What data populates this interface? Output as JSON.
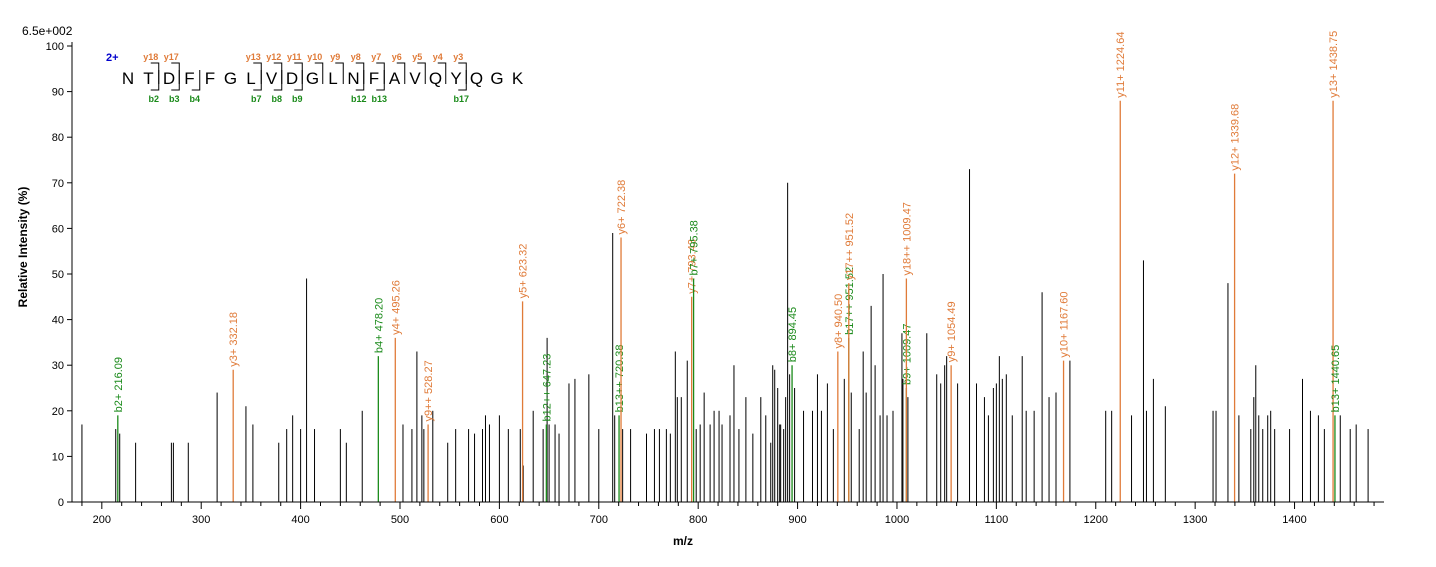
{
  "chart_data": {
    "type": "bar",
    "scale_label": "6.5e+002",
    "xlabel": "m/z",
    "ylabel": "Relative   Intensity (%)",
    "xlim": [
      170,
      1490
    ],
    "ylim": [
      0,
      100
    ],
    "x_ticks": [
      200,
      300,
      400,
      500,
      600,
      700,
      800,
      900,
      1000,
      1100,
      1200,
      1300,
      1400
    ],
    "y_ticks": [
      0,
      10,
      20,
      30,
      40,
      50,
      60,
      70,
      80,
      90,
      100
    ],
    "colors": {
      "y_ion": "#e07b39",
      "b_ion": "#1a8a1a",
      "peak": "#000000",
      "charge": "#0000cc"
    },
    "peptide": {
      "charge": "2+",
      "sequence": [
        "N",
        "T",
        "D",
        "F",
        "F",
        "G",
        "L",
        "V",
        "D",
        "G",
        "L",
        "N",
        "F",
        "A",
        "V",
        "Q",
        "Y",
        "Q",
        "G",
        "K"
      ],
      "y_marks": [
        {
          "after": 2,
          "label": "y18"
        },
        {
          "after": 3,
          "label": "y17"
        },
        {
          "after": 7,
          "label": "y13"
        },
        {
          "after": 8,
          "label": "y12"
        },
        {
          "after": 9,
          "label": "y11"
        },
        {
          "after": 10,
          "label": "y10"
        },
        {
          "after": 11,
          "label": "y9"
        },
        {
          "after": 12,
          "label": "y8"
        },
        {
          "after": 13,
          "label": "y7"
        },
        {
          "after": 14,
          "label": "y6"
        },
        {
          "after": 15,
          "label": "y5"
        },
        {
          "after": 16,
          "label": "y4"
        },
        {
          "after": 17,
          "label": "y3"
        }
      ],
      "b_marks": [
        {
          "after": 2,
          "label": "b2"
        },
        {
          "after": 3,
          "label": "b3"
        },
        {
          "after": 4,
          "label": "b4"
        },
        {
          "after": 7,
          "label": "b7"
        },
        {
          "after": 8,
          "label": "b8"
        },
        {
          "after": 9,
          "label": "b9"
        },
        {
          "after": 12,
          "label": "b12"
        },
        {
          "after": 13,
          "label": "b13"
        },
        {
          "after": 17,
          "label": "b17"
        }
      ]
    },
    "annotated_peaks": [
      {
        "mz": 216.09,
        "intensity": 19,
        "ion": "b",
        "label": "b2+ 216.09"
      },
      {
        "mz": 332.18,
        "intensity": 29,
        "ion": "y",
        "label": "y3+ 332.18"
      },
      {
        "mz": 478.2,
        "intensity": 32,
        "ion": "b",
        "label": "b4+ 478.20"
      },
      {
        "mz": 495.26,
        "intensity": 36,
        "ion": "y",
        "label": "y4+ 495.26"
      },
      {
        "mz": 528.27,
        "intensity": 17,
        "ion": "y",
        "label": "y9++ 528.27"
      },
      {
        "mz": 623.32,
        "intensity": 44,
        "ion": "y",
        "label": "y5+ 623.32"
      },
      {
        "mz": 647.23,
        "intensity": 17,
        "ion": "b",
        "label": "b12++ 647.23"
      },
      {
        "mz": 720.38,
        "intensity": 19,
        "ion": "b",
        "label": "b13++ 720.38"
      },
      {
        "mz": 722.38,
        "intensity": 58,
        "ion": "y",
        "label": "y6+ 722.38"
      },
      {
        "mz": 793.43,
        "intensity": 45,
        "ion": "y",
        "label": "y7+ 793.43"
      },
      {
        "mz": 795.38,
        "intensity": 49,
        "ion": "b",
        "label": "b7+ 795.38"
      },
      {
        "mz": 894.45,
        "intensity": 30,
        "ion": "b",
        "label": "b8+ 894.45"
      },
      {
        "mz": 940.5,
        "intensity": 33,
        "ion": "y",
        "label": "y8+ 940.50"
      },
      {
        "mz": 951.52,
        "intensity": 36,
        "ion": "b",
        "label": "b17++ 951.52"
      },
      {
        "mz": 951.52,
        "intensity": 48,
        "ion": "y",
        "label": "y17++ 951.52"
      },
      {
        "mz": 1009.47,
        "intensity": 25,
        "ion": "b",
        "label": "b9+ 1009.47"
      },
      {
        "mz": 1009.47,
        "intensity": 49,
        "ion": "y",
        "label": "y18++ 1009.47"
      },
      {
        "mz": 1054.49,
        "intensity": 30,
        "ion": "y",
        "label": "y9+ 1054.49"
      },
      {
        "mz": 1167.6,
        "intensity": 31,
        "ion": "y",
        "label": "y10+ 1167.60"
      },
      {
        "mz": 1224.64,
        "intensity": 88,
        "ion": "y",
        "label": "y11+ 1224.64"
      },
      {
        "mz": 1339.68,
        "intensity": 72,
        "ion": "y",
        "label": "y12+ 1339.68"
      },
      {
        "mz": 1438.75,
        "intensity": 88,
        "ion": "y",
        "label": "y13+ 1438.75"
      },
      {
        "mz": 1440.65,
        "intensity": 19,
        "ion": "b",
        "label": "b13+ 1440.65"
      }
    ],
    "peaks": [
      [
        180,
        17
      ],
      [
        214,
        16
      ],
      [
        218,
        15
      ],
      [
        234,
        13
      ],
      [
        270,
        13
      ],
      [
        272,
        13
      ],
      [
        287,
        13
      ],
      [
        316,
        24
      ],
      [
        345,
        21
      ],
      [
        352,
        17
      ],
      [
        378,
        13
      ],
      [
        386,
        16
      ],
      [
        392,
        19
      ],
      [
        400,
        16
      ],
      [
        406,
        49
      ],
      [
        414,
        16
      ],
      [
        440,
        16
      ],
      [
        446,
        13
      ],
      [
        462,
        20
      ],
      [
        503,
        17
      ],
      [
        512,
        16
      ],
      [
        517,
        33
      ],
      [
        522,
        19
      ],
      [
        524,
        16
      ],
      [
        533,
        20
      ],
      [
        548,
        13
      ],
      [
        556,
        16
      ],
      [
        569,
        16
      ],
      [
        575,
        15
      ],
      [
        583,
        16
      ],
      [
        586,
        19
      ],
      [
        590,
        17
      ],
      [
        600,
        19
      ],
      [
        609,
        16
      ],
      [
        621,
        16
      ],
      [
        624,
        8
      ],
      [
        634,
        20
      ],
      [
        644,
        16
      ],
      [
        648,
        36
      ],
      [
        650,
        17
      ],
      [
        656,
        17
      ],
      [
        660,
        15
      ],
      [
        670,
        26
      ],
      [
        676,
        27
      ],
      [
        690,
        28
      ],
      [
        700,
        16
      ],
      [
        714,
        59
      ],
      [
        716,
        19
      ],
      [
        724,
        16
      ],
      [
        732,
        16
      ],
      [
        748,
        15
      ],
      [
        756,
        16
      ],
      [
        761,
        16
      ],
      [
        768,
        16
      ],
      [
        772,
        15
      ],
      [
        777,
        33
      ],
      [
        779,
        23
      ],
      [
        783,
        23
      ],
      [
        789,
        31
      ],
      [
        798,
        16
      ],
      [
        802,
        17
      ],
      [
        806,
        24
      ],
      [
        812,
        17
      ],
      [
        816,
        20
      ],
      [
        821,
        20
      ],
      [
        824,
        17
      ],
      [
        832,
        19
      ],
      [
        836,
        30
      ],
      [
        841,
        16
      ],
      [
        848,
        23
      ],
      [
        855,
        15
      ],
      [
        863,
        23
      ],
      [
        868,
        19
      ],
      [
        873,
        13
      ],
      [
        875,
        30
      ],
      [
        877,
        29
      ],
      [
        880,
        25
      ],
      [
        882,
        17
      ],
      [
        883,
        17
      ],
      [
        886,
        16
      ],
      [
        888,
        23
      ],
      [
        890,
        70
      ],
      [
        892,
        28
      ],
      [
        897,
        25
      ],
      [
        906,
        20
      ],
      [
        915,
        20
      ],
      [
        920,
        28
      ],
      [
        924,
        20
      ],
      [
        930,
        26
      ],
      [
        936,
        16
      ],
      [
        947,
        27
      ],
      [
        954,
        24
      ],
      [
        962,
        16
      ],
      [
        966,
        33
      ],
      [
        969,
        24
      ],
      [
        974,
        43
      ],
      [
        978,
        30
      ],
      [
        983,
        19
      ],
      [
        986,
        50
      ],
      [
        990,
        19
      ],
      [
        996,
        20
      ],
      [
        1005,
        37
      ],
      [
        1006,
        27
      ],
      [
        1011,
        23
      ],
      [
        1030,
        37
      ],
      [
        1040,
        28
      ],
      [
        1044,
        26
      ],
      [
        1048,
        30
      ],
      [
        1050,
        32
      ],
      [
        1061,
        26
      ],
      [
        1073,
        73
      ],
      [
        1080,
        26
      ],
      [
        1088,
        23
      ],
      [
        1092,
        19
      ],
      [
        1097,
        25
      ],
      [
        1100,
        26
      ],
      [
        1103,
        32
      ],
      [
        1106,
        27
      ],
      [
        1110,
        28
      ],
      [
        1116,
        19
      ],
      [
        1126,
        32
      ],
      [
        1130,
        20
      ],
      [
        1138,
        20
      ],
      [
        1146,
        46
      ],
      [
        1153,
        23
      ],
      [
        1160,
        24
      ],
      [
        1174,
        31
      ],
      [
        1210,
        20
      ],
      [
        1216,
        20
      ],
      [
        1236,
        19
      ],
      [
        1248,
        53
      ],
      [
        1251,
        20
      ],
      [
        1258,
        27
      ],
      [
        1270,
        21
      ],
      [
        1318,
        20
      ],
      [
        1321,
        20
      ],
      [
        1333,
        48
      ],
      [
        1344,
        19
      ],
      [
        1356,
        16
      ],
      [
        1359,
        23
      ],
      [
        1361,
        30
      ],
      [
        1364,
        19
      ],
      [
        1368,
        16
      ],
      [
        1373,
        19
      ],
      [
        1376,
        20
      ],
      [
        1380,
        16
      ],
      [
        1395,
        16
      ],
      [
        1408,
        27
      ],
      [
        1416,
        20
      ],
      [
        1424,
        19
      ],
      [
        1430,
        16
      ],
      [
        1446,
        19
      ],
      [
        1456,
        16
      ],
      [
        1462,
        17
      ],
      [
        1474,
        16
      ]
    ]
  }
}
